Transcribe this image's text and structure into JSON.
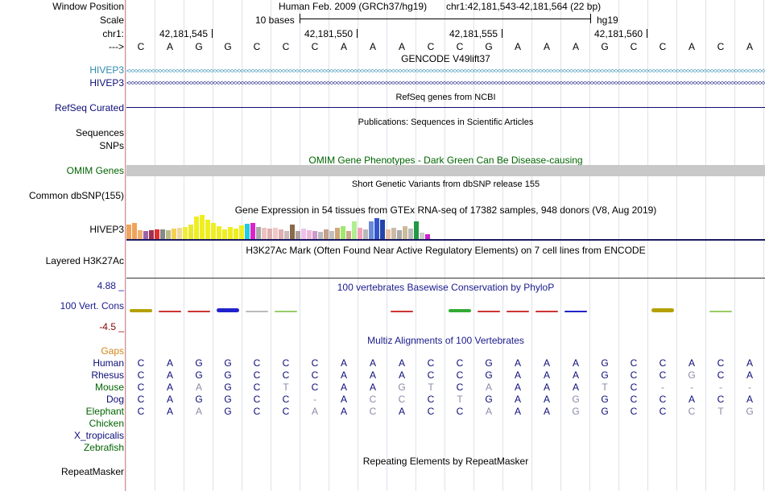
{
  "header": {
    "window_position_label": "Window Position",
    "scale_label": "Scale",
    "chrom_label": "chr1:",
    "strand_label": "--->",
    "assembly": "Human Feb. 2009 (GRCh37/hg19)",
    "position": "chr1:42,181,543-42,181,564 (22 bp)",
    "scale_text": "10 bases",
    "assembly_short": "hg19",
    "coords": [
      "42,181,545",
      "42,181,550",
      "42,181,555",
      "42,181,560"
    ]
  },
  "sequence": [
    "C",
    "A",
    "G",
    "G",
    "C",
    "C",
    "C",
    "A",
    "A",
    "A",
    "C",
    "C",
    "G",
    "A",
    "A",
    "A",
    "G",
    "C",
    "C",
    "A",
    "C",
    "A"
  ],
  "tracks": {
    "gencode_title": "GENCODE V49lift37",
    "gencode_genes": [
      "HIVEP3",
      "HIVEP3"
    ],
    "refseq_title": "RefSeq genes from NCBI",
    "refseq_label": "RefSeq Curated",
    "pubs_title": "Publications: Sequences in Scientific Articles",
    "sequences_label": "Sequences",
    "snps_label": "SNPs",
    "omim_title": "OMIM Gene Phenotypes - Dark Green Can Be Disease-causing",
    "omim_label": "OMIM Genes",
    "dbsnp_title": "Short Genetic Variants from dbSNP release 155",
    "dbsnp_label": "Common dbSNP(155)",
    "gtex_title": "Gene Expression in 54 tissues from GTEx RNA-seq of 17382 samples, 948 donors (V8, Aug 2019)",
    "gtex_label": "HIVEP3",
    "h3k27_title": "H3K27Ac Mark (Often Found Near Active Regulatory Elements) on 7 cell lines from ENCODE",
    "h3k27_label": "Layered H3K27Ac",
    "phylop_title": "100 vertebrates Basewise Conservation by PhyloP",
    "phylop_label": "100 Vert. Cons",
    "phylop_max": "4.88 _",
    "phylop_min": "-4.5 _",
    "multiz_title": "Multiz Alignments of 100 Vertebrates",
    "gaps_label": "Gaps",
    "repeat_title": "Repeating Elements by RepeatMasker",
    "repeat_label": "RepeatMasker"
  },
  "colors": {
    "gencode": "#2e8bb0",
    "refseq": "#0c0c78",
    "omim_label": "#006400",
    "omim_bar": "#c8c8c8",
    "phylop_title": "#1a1a8c",
    "phylop_min": "#8b0000",
    "gaps": "#d2881a",
    "species": "#0c0c78"
  },
  "gtex_values": [
    {
      "h": 18,
      "c": "#f0a35a"
    },
    {
      "h": 20,
      "c": "#f0a35a"
    },
    {
      "h": 11,
      "c": "#f3b06f"
    },
    {
      "h": 10,
      "c": "#9966aa"
    },
    {
      "h": 11,
      "c": "#a03050"
    },
    {
      "h": 12,
      "c": "#e03030"
    },
    {
      "h": 12,
      "c": "#888888"
    },
    {
      "h": 11,
      "c": "#bbbb88"
    },
    {
      "h": 13,
      "c": "#f3d050"
    },
    {
      "h": 14,
      "c": "#f0d7a0"
    },
    {
      "h": 15,
      "c": "#eeee33"
    },
    {
      "h": 18,
      "c": "#e8e833"
    },
    {
      "h": 28,
      "c": "#eeee22"
    },
    {
      "h": 30,
      "c": "#eeee22"
    },
    {
      "h": 24,
      "c": "#eeee22"
    },
    {
      "h": 20,
      "c": "#eeee22"
    },
    {
      "h": 16,
      "c": "#eeee22"
    },
    {
      "h": 12,
      "c": "#eeee22"
    },
    {
      "h": 15,
      "c": "#eeee22"
    },
    {
      "h": 13,
      "c": "#eeee22"
    },
    {
      "h": 17,
      "c": "#eeee22"
    },
    {
      "h": 19,
      "c": "#22ccdd"
    },
    {
      "h": 20,
      "c": "#dd22cc"
    },
    {
      "h": 15,
      "c": "#aaaaaa"
    },
    {
      "h": 14,
      "c": "#eec0c0"
    },
    {
      "h": 13,
      "c": "#e0b0b0"
    },
    {
      "h": 14,
      "c": "#f0c8c8"
    },
    {
      "h": 12,
      "c": "#dfb0b0"
    },
    {
      "h": 10,
      "c": "#ccbbbb"
    },
    {
      "h": 18,
      "c": "#8a6a4a"
    },
    {
      "h": 10,
      "c": "#b0a0a0"
    },
    {
      "h": 13,
      "c": "#eec0ee"
    },
    {
      "h": 11,
      "c": "#f0b8d8"
    },
    {
      "h": 10,
      "c": "#cc99cc"
    },
    {
      "h": 9,
      "c": "#bbbbbb"
    },
    {
      "h": 12,
      "c": "#c8a08a"
    },
    {
      "h": 10,
      "c": "#c0c0c0"
    },
    {
      "h": 14,
      "c": "#d0a878"
    },
    {
      "h": 16,
      "c": "#a0e870"
    },
    {
      "h": 10,
      "c": "#ccaa88"
    },
    {
      "h": 22,
      "c": "#b0ee90"
    },
    {
      "h": 14,
      "c": "#f5a0c0"
    },
    {
      "h": 12,
      "c": "#b8b8b8"
    },
    {
      "h": 22,
      "c": "#6a8ad8"
    },
    {
      "h": 26,
      "c": "#3355cc"
    },
    {
      "h": 24,
      "c": "#2244aa"
    },
    {
      "h": 12,
      "c": "#e8c0a0"
    },
    {
      "h": 14,
      "c": "#ccbbaa"
    },
    {
      "h": 11,
      "c": "#aaaaaa"
    },
    {
      "h": 16,
      "c": "#ccbb99"
    },
    {
      "h": 13,
      "c": "#bbbbbb"
    },
    {
      "h": 22,
      "c": "#229944"
    },
    {
      "h": 8,
      "c": "#cccccc"
    },
    {
      "h": 6,
      "c": "#cc22cc"
    }
  ],
  "phylop_bars": [
    {
      "i": 0,
      "v": 0.28,
      "c": "#b5a000"
    },
    {
      "i": 1,
      "v": 0.15,
      "c": "#cc3333"
    },
    {
      "i": 2,
      "v": 0.12,
      "c": "#cc3333"
    },
    {
      "i": 3,
      "v": 0.35,
      "c": "#2222cc"
    },
    {
      "i": 4,
      "v": 0.12,
      "c": "#bbbbbb"
    },
    {
      "i": 5,
      "v": 0.08,
      "c": "#99cc66"
    },
    {
      "i": 9,
      "v": 0.1,
      "c": "#cc3333"
    },
    {
      "i": 11,
      "v": 0.32,
      "c": "#33aa33"
    },
    {
      "i": 12,
      "v": 0.14,
      "c": "#cc3333"
    },
    {
      "i": 13,
      "v": 0.12,
      "c": "#cc3333"
    },
    {
      "i": 14,
      "v": 0.12,
      "c": "#cc3333"
    },
    {
      "i": 15,
      "v": 0.1,
      "c": "#2222cc"
    },
    {
      "i": 18,
      "v": 0.35,
      "c": "#b5a000"
    },
    {
      "i": 20,
      "v": 0.08,
      "c": "#99cc66"
    }
  ],
  "multiz": [
    {
      "species": "Human",
      "bases": [
        "C",
        "A",
        "G",
        "G",
        "C",
        "C",
        "C",
        "A",
        "A",
        "A",
        "C",
        "C",
        "G",
        "A",
        "A",
        "A",
        "G",
        "C",
        "C",
        "A",
        "C",
        "A"
      ],
      "dim": []
    },
    {
      "species": "Rhesus",
      "bases": [
        "C",
        "A",
        "G",
        "G",
        "C",
        "C",
        "C",
        "A",
        "A",
        "A",
        "C",
        "C",
        "G",
        "A",
        "A",
        "A",
        "G",
        "C",
        "C",
        "G",
        "C",
        "A"
      ],
      "dim": [
        19
      ]
    },
    {
      "species": "Mouse",
      "bases": [
        "C",
        "A",
        "A",
        "G",
        "C",
        "T",
        "C",
        "A",
        "A",
        "G",
        "T",
        "C",
        "A",
        "A",
        "A",
        "A",
        "T",
        "C",
        "-",
        "-",
        "-",
        "-"
      ],
      "dim": [
        2,
        5,
        9,
        10,
        12,
        16,
        18,
        19,
        20,
        21
      ]
    },
    {
      "species": "Dog",
      "bases": [
        "C",
        "A",
        "G",
        "G",
        "C",
        "C",
        "-",
        "A",
        "C",
        "C",
        "C",
        "T",
        "G",
        "A",
        "A",
        "G",
        "G",
        "C",
        "C",
        "A",
        "C",
        "A"
      ],
      "dim": [
        6,
        8,
        9,
        11,
        15
      ]
    },
    {
      "species": "Elephant",
      "bases": [
        "C",
        "A",
        "A",
        "G",
        "C",
        "C",
        "A",
        "A",
        "C",
        "A",
        "C",
        "C",
        "A",
        "A",
        "A",
        "G",
        "G",
        "C",
        "C",
        "C",
        "T",
        "G"
      ],
      "dim": [
        2,
        6,
        8,
        12,
        15,
        19,
        20,
        21
      ]
    },
    {
      "species": "Chicken",
      "bases": [],
      "dim": []
    },
    {
      "species": "X_tropicalis",
      "bases": [],
      "dim": []
    },
    {
      "species": "Zebrafish",
      "bases": [],
      "dim": []
    }
  ]
}
